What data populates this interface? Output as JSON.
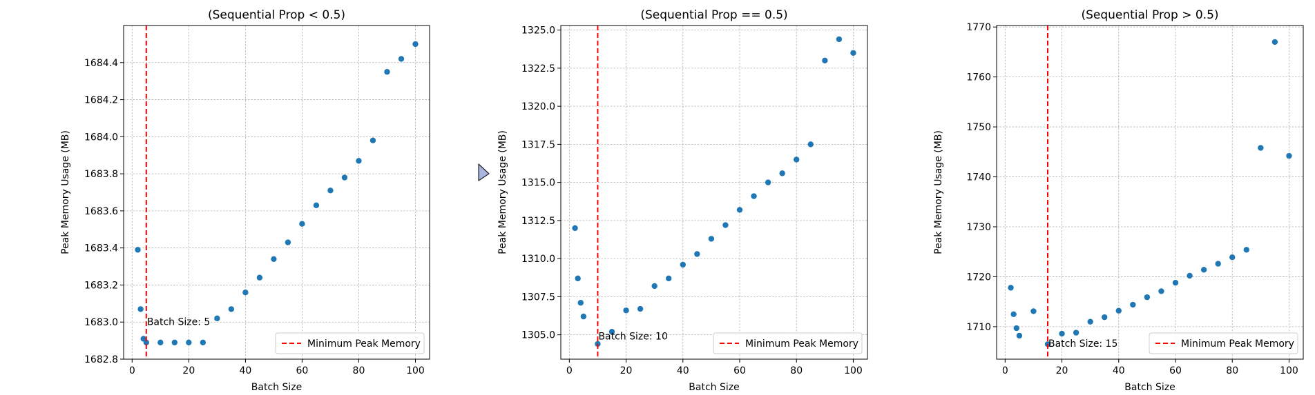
{
  "chart_data": [
    {
      "type": "scatter",
      "title": "(Sequential Prop < 0.5)",
      "xlabel": "Batch Size",
      "ylabel": "Peak Memory Usage (MB)",
      "xlim": [
        -3,
        105
      ],
      "ylim": [
        1682.8,
        1684.6
      ],
      "xticks": [
        0,
        20,
        40,
        60,
        80,
        100
      ],
      "yticks": [
        1682.8,
        1683.0,
        1683.2,
        1683.4,
        1683.6,
        1683.8,
        1684.0,
        1684.2,
        1684.4
      ],
      "ytick_labels": [
        "1682.8",
        "1683.0",
        "1683.2",
        "1683.4",
        "1683.6",
        "1683.8",
        "1684.0",
        "1684.2",
        "1684.4"
      ],
      "grid": true,
      "point_color": "#1f77b4",
      "x": [
        2,
        3,
        4,
        5,
        10,
        15,
        20,
        25,
        30,
        35,
        40,
        45,
        50,
        55,
        60,
        65,
        70,
        75,
        80,
        85,
        90,
        95,
        100
      ],
      "y": [
        1683.39,
        1683.07,
        1682.91,
        1682.89,
        1682.89,
        1682.89,
        1682.89,
        1682.89,
        1683.02,
        1683.07,
        1683.16,
        1683.24,
        1683.34,
        1683.43,
        1683.53,
        1683.63,
        1683.71,
        1683.78,
        1683.87,
        1683.98,
        1684.35,
        1684.42,
        1684.5
      ],
      "min_line_x": 5,
      "min_line_color": "#ff0000",
      "annotation": {
        "text": "Batch Size: 5",
        "x": 5,
        "y": 1682.985
      },
      "legend": {
        "label": "Minimum Peak Memory",
        "position": "lower-right"
      }
    },
    {
      "type": "scatter",
      "title": "(Sequential Prop == 0.5)",
      "xlabel": "Batch Size",
      "ylabel": "Peak Memory Usage (MB)",
      "xlim": [
        -3,
        105
      ],
      "ylim": [
        1303.4,
        1325.3
      ],
      "xticks": [
        0,
        20,
        40,
        60,
        80,
        100
      ],
      "yticks": [
        1305.0,
        1307.5,
        1310.0,
        1312.5,
        1315.0,
        1317.5,
        1320.0,
        1322.5,
        1325.0
      ],
      "ytick_labels": [
        "1305.0",
        "1307.5",
        "1310.0",
        "1312.5",
        "1315.0",
        "1317.5",
        "1320.0",
        "1322.5",
        "1325.0"
      ],
      "grid": true,
      "point_color": "#1f77b4",
      "x": [
        2,
        3,
        4,
        5,
        10,
        15,
        20,
        25,
        30,
        35,
        40,
        45,
        50,
        55,
        60,
        65,
        70,
        75,
        80,
        85,
        90,
        95,
        100
      ],
      "y": [
        1312.0,
        1308.7,
        1307.1,
        1306.2,
        1304.4,
        1305.2,
        1306.6,
        1306.7,
        1308.2,
        1308.7,
        1309.6,
        1310.3,
        1311.3,
        1312.2,
        1313.2,
        1314.1,
        1315.0,
        1315.6,
        1316.5,
        1317.5,
        1323.0,
        1324.4,
        1323.5
      ],
      "min_line_x": 10,
      "min_line_color": "#ff0000",
      "annotation": {
        "text": "Batch Size: 10",
        "x": 10,
        "y": 1304.7
      },
      "legend": {
        "label": "Minimum Peak Memory",
        "position": "lower-right"
      }
    },
    {
      "type": "scatter",
      "title": "(Sequential Prop > 0.5)",
      "xlabel": "Batch Size",
      "ylabel": "Peak Memory Usage (MB)",
      "xlim": [
        -3,
        105
      ],
      "ylim": [
        1703.5,
        1770.3
      ],
      "xticks": [
        0,
        20,
        40,
        60,
        80,
        100
      ],
      "yticks": [
        1710,
        1720,
        1730,
        1740,
        1750,
        1760,
        1770
      ],
      "ytick_labels": [
        "1710",
        "1720",
        "1730",
        "1740",
        "1750",
        "1760",
        "1770"
      ],
      "grid": true,
      "point_color": "#1f77b4",
      "x": [
        2,
        3,
        4,
        5,
        10,
        15,
        20,
        25,
        30,
        35,
        40,
        45,
        50,
        55,
        60,
        65,
        70,
        75,
        80,
        85,
        90,
        95,
        100
      ],
      "y": [
        1717.8,
        1712.5,
        1709.7,
        1708.2,
        1713.1,
        1706.5,
        1708.6,
        1708.8,
        1711.0,
        1711.9,
        1713.2,
        1714.4,
        1715.9,
        1717.1,
        1718.8,
        1720.2,
        1721.4,
        1722.6,
        1723.9,
        1725.4,
        1745.8,
        1767.0,
        1744.2
      ],
      "min_line_x": 15,
      "min_line_color": "#ff0000",
      "annotation": {
        "text": "Batch Size: 15",
        "x": 15,
        "y": 1706.0
      },
      "legend": {
        "label": "Minimum Peak Memory",
        "position": "lower-right"
      }
    }
  ],
  "cursor": {
    "icon": "pointer-cursor-icon",
    "color": "#aab4e0"
  }
}
